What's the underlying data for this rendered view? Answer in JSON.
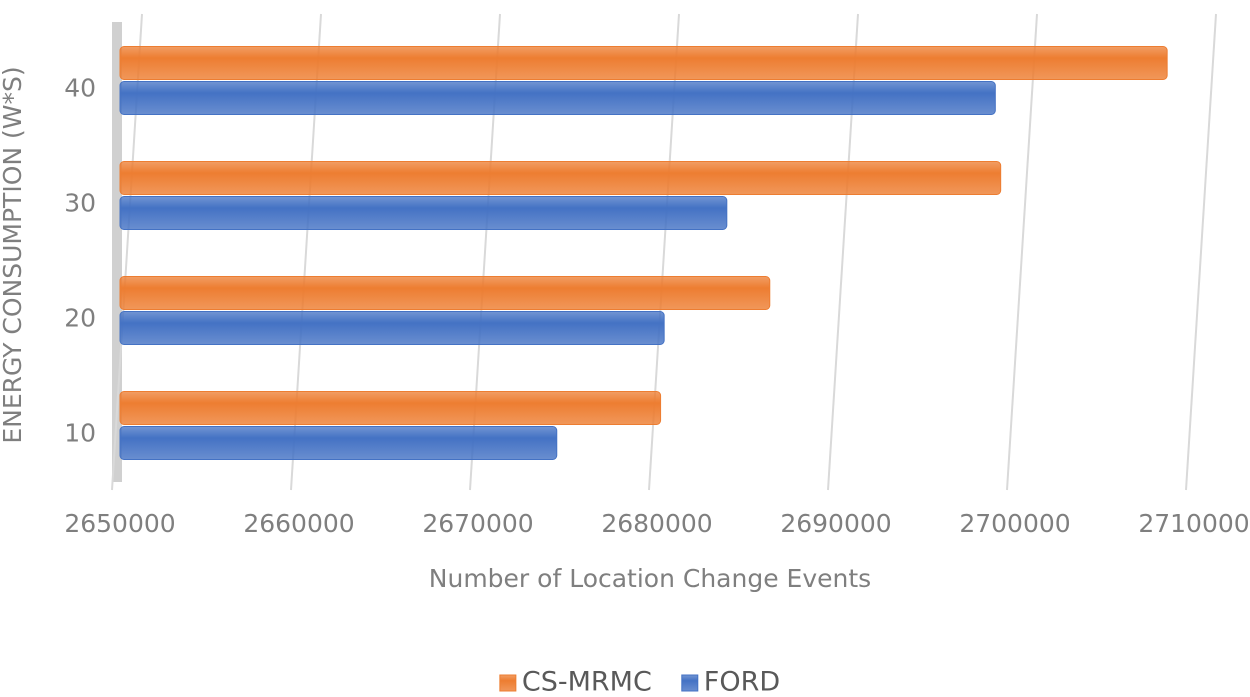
{
  "chart_data": {
    "type": "bar",
    "orientation": "horizontal",
    "x_label": "Number of Location Change Events",
    "y_label": "ENERGY CONSUMPTION (W*S)",
    "categories": [
      "10",
      "20",
      "30",
      "40"
    ],
    "series": [
      {
        "name": "CS-MRMC",
        "color": "#ed7d31",
        "values": [
          2680200,
          2686300,
          2699200,
          2708500
        ]
      },
      {
        "name": "FORD",
        "color": "#4472c4",
        "values": [
          2674400,
          2680400,
          2683900,
          2698900
        ]
      }
    ],
    "xlim": [
      2650000,
      2710000
    ],
    "xticks": [
      2650000,
      2660000,
      2670000,
      2680000,
      2690000,
      2700000,
      2710000
    ],
    "grid": true,
    "legend": "bottom"
  }
}
